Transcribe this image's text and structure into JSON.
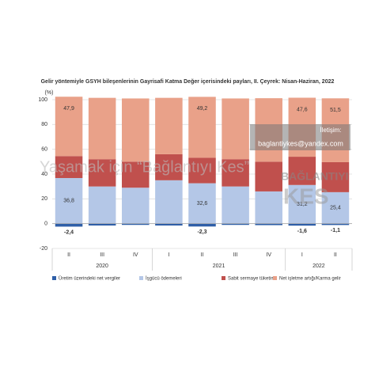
{
  "chart_data": {
    "type": "stacked_bar",
    "title": "Gelir yöntemiyle GSYH bileşenlerinin Gayrisafi Katma Değer içerisindeki payları, II. Çeyrek: Nisan-Haziran, 2022",
    "y_label": "(%)",
    "categories": [
      "II",
      "III",
      "IV",
      "I",
      "II",
      "III",
      "IV",
      "I",
      "II"
    ],
    "groups": [
      "2020",
      "2020",
      "2020",
      "2021",
      "2021",
      "2021",
      "2021",
      "2022",
      "2022"
    ],
    "series": [
      {
        "name": "Üretim üzerindeki net vergiler",
        "color": "#2f5fa8",
        "values": [
          -2.4,
          -1.5,
          -1.0,
          -1.5,
          -2.3,
          -1.0,
          -1.2,
          -1.6,
          -1.1
        ],
        "value_labels": [
          "-2,4",
          null,
          null,
          null,
          "-2,3",
          null,
          null,
          "-1,6",
          "-1,1"
        ]
      },
      {
        "name": "İşgücü ödemeleri",
        "color": "#b4c7e7",
        "values": [
          36.8,
          30,
          29,
          35,
          32.6,
          30,
          26,
          31.2,
          25.4
        ],
        "value_labels": [
          "36,8",
          null,
          null,
          null,
          "32,6",
          null,
          null,
          "31,2",
          "25,4"
        ]
      },
      {
        "name": "Sabit sermaye tüketimi",
        "color": "#c0504d",
        "values": [
          17.7,
          22,
          21,
          21,
          20.5,
          22,
          24,
          22.8,
          24.2
        ]
      },
      {
        "name": "Net işletme artığı/Karma gelir",
        "color": "#e9a189",
        "values": [
          47.9,
          49.5,
          51,
          45.5,
          49.2,
          49,
          51.2,
          47.6,
          51.5
        ],
        "value_labels": [
          "47,9",
          null,
          null,
          null,
          "49,2",
          null,
          null,
          "47,6",
          "51,5"
        ]
      }
    ],
    "ylim": [
      -20,
      100
    ],
    "yticks": [
      -20,
      0,
      20,
      40,
      60,
      80,
      100
    ],
    "grid": true,
    "watermarks": [
      "Yaşamak için “Bağlantıyı Kes”",
      "İletişim:",
      "baglantiykes@yandex.com",
      "BAĞLANTIYI",
      "KES"
    ]
  }
}
